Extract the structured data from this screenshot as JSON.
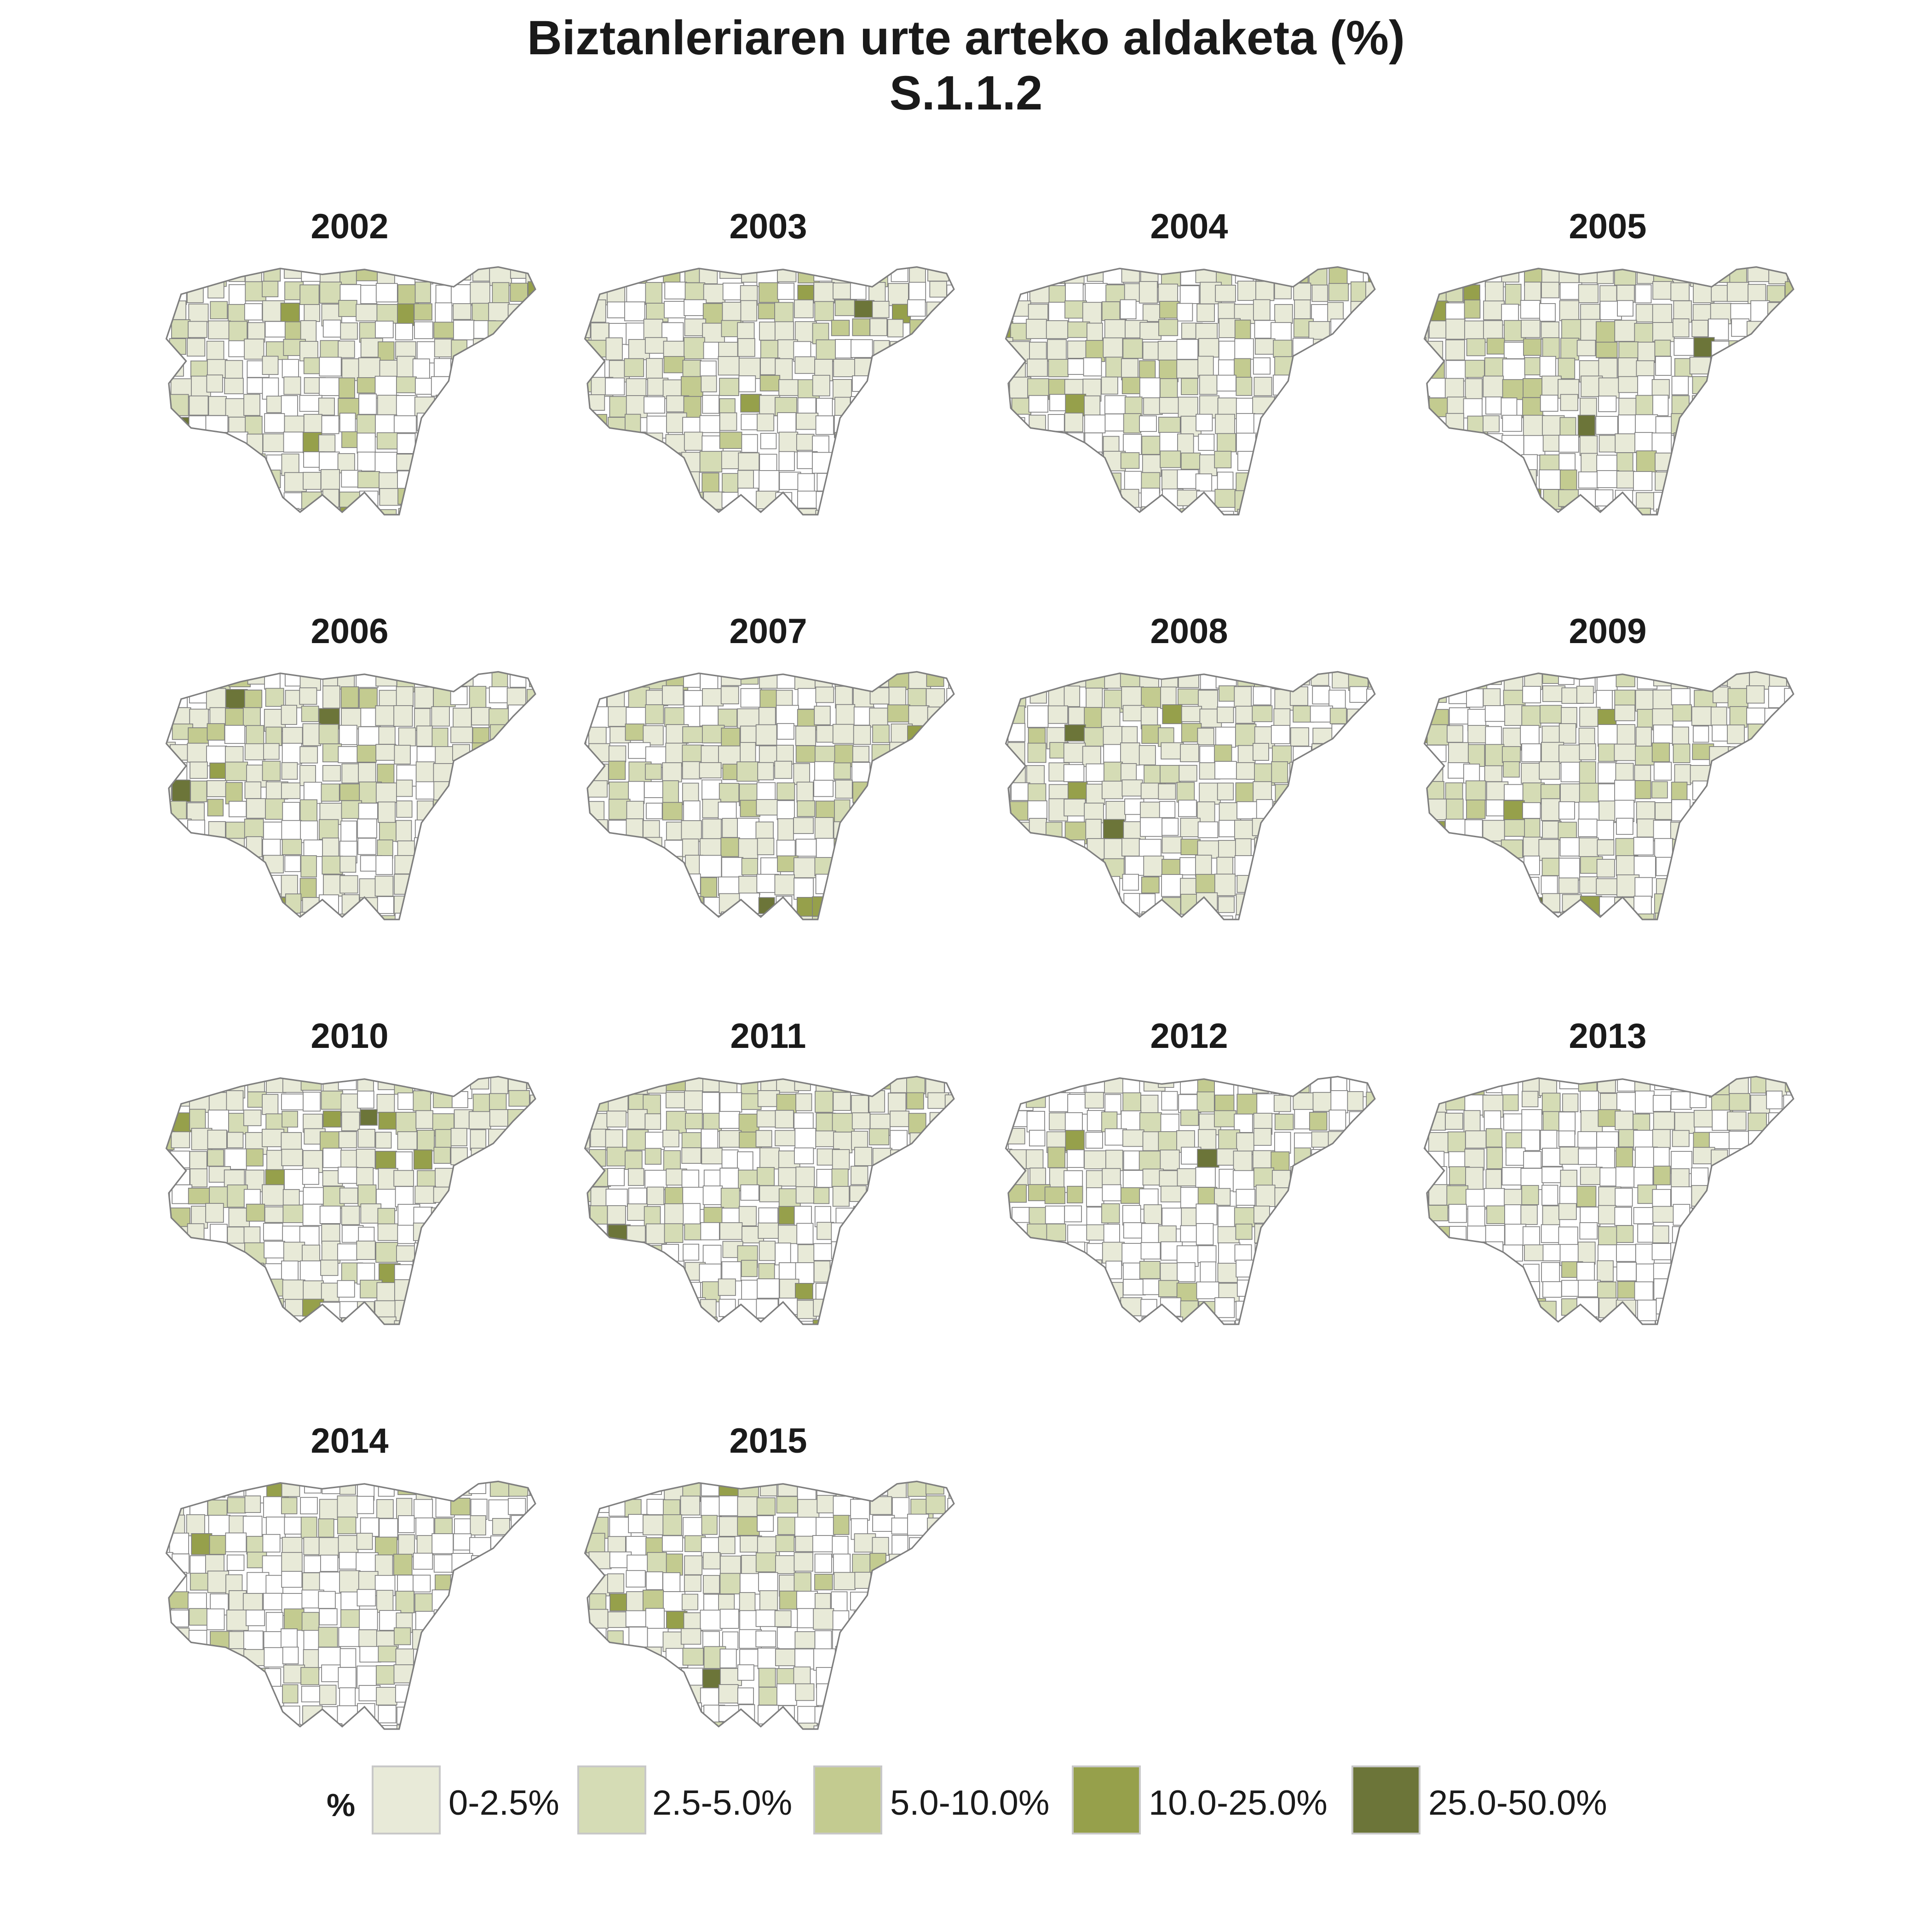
{
  "title": "Biztanleriaren urte arteko aldaketa (%)",
  "subtitle": "S.1.1.2",
  "chart_data": {
    "type": "choropleth-map",
    "title": "Biztanleriaren urte arteko aldaketa (%)",
    "subtitle": "S.1.1.2",
    "panels": [
      "2002",
      "2003",
      "2004",
      "2005",
      "2006",
      "2007",
      "2008",
      "2009",
      "2010",
      "2011",
      "2012",
      "2013",
      "2014",
      "2015"
    ],
    "legend_title": "%",
    "legend_position": "bottom",
    "classes": [
      {
        "label": "0-2.5%",
        "min": 0,
        "max": 2.5,
        "color": "#e8ead8"
      },
      {
        "label": "2.5-5.0%",
        "min": 2.5,
        "max": 5.0,
        "color": "#d5dcb5"
      },
      {
        "label": "5.0-10.0%",
        "min": 5.0,
        "max": 10.0,
        "color": "#c3cb90"
      },
      {
        "label": "10.0-25.0%",
        "min": 10.0,
        "max": 25.0,
        "color": "#96a04b"
      },
      {
        "label": "25.0-50.0%",
        "min": 25.0,
        "max": 50.0,
        "color": "#6c7539"
      }
    ],
    "no_growth_color": "#ffffff",
    "border_color": "#7f7f7f"
  }
}
